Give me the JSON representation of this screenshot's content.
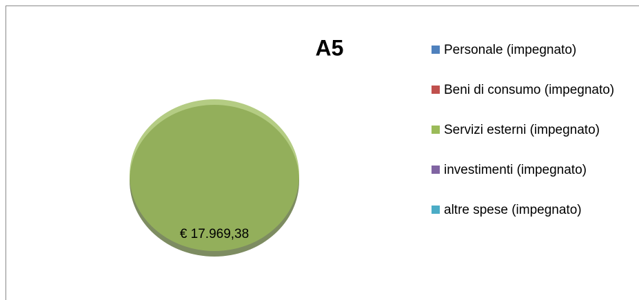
{
  "chart_data": {
    "type": "pie",
    "title": "A5",
    "series": [
      {
        "name": "Personale (impegnato)",
        "color": "#4f81bd"
      },
      {
        "name": "Beni di consumo (impegnato)",
        "color": "#c0504d"
      },
      {
        "name": "Servizi esterni (impegnato)",
        "color": "#9bbb59"
      },
      {
        "name": "investimenti (impegnato)",
        "color": "#8064a2"
      },
      {
        "name": "altre spese (impegnato)",
        "color": "#4bacc6"
      }
    ],
    "categories": [
      "Personale (impegnato)",
      "Beni di consumo (impegnato)",
      "Servizi esterni (impegnato)",
      "investimenti (impegnato)",
      "altre spese (impegnato)"
    ],
    "values": [
      0,
      0,
      17969.38,
      0,
      0
    ],
    "value_labels": [
      null,
      null,
      "€ 17.969,38",
      null,
      null
    ],
    "legend": "right"
  }
}
